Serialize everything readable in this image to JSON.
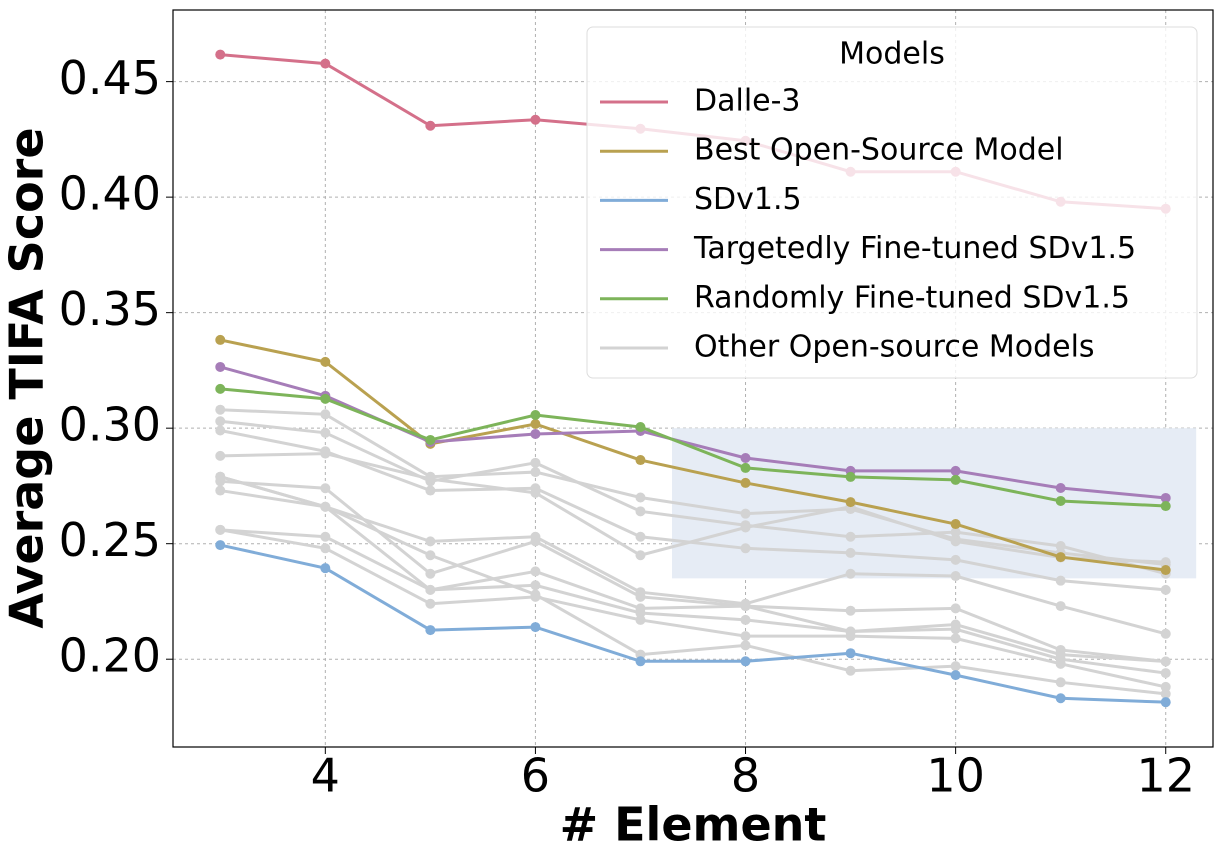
{
  "chart_data": {
    "type": "line",
    "x_label": "# Element",
    "y_label": "Average TIFA Score",
    "x": [
      3,
      4,
      5,
      6,
      7,
      8,
      9,
      10,
      11,
      12
    ],
    "xlim": [
      2.55,
      12.45
    ],
    "ylim": [
      0.162,
      0.481
    ],
    "xticks": [
      4,
      6,
      8,
      10,
      12
    ],
    "yticks": [
      {
        "value": 0.2,
        "label": "0.20"
      },
      0.25,
      {
        "value": 0.3,
        "label": "0.30"
      },
      0.35,
      {
        "value": 0.4,
        "label": "0.40"
      },
      0.45
    ],
    "grid": true,
    "legend_title": "Models",
    "legend_position": "upper right",
    "highlight_region": {
      "x": [
        7.3,
        12.29
      ],
      "y": [
        0.235,
        0.3
      ],
      "color": "#e6ecf5"
    },
    "other_models": {
      "name": "Other Open-source Models",
      "color": "#d3d3d3",
      "values": [
        [
          0.308,
          0.306,
          0.279,
          0.281,
          0.27,
          0.263,
          0.265,
          0.252,
          0.246,
          0.241
        ],
        [
          0.303,
          0.298,
          0.277,
          0.285,
          0.264,
          0.258,
          0.253,
          0.255,
          0.249,
          0.237
        ],
        [
          0.299,
          0.29,
          0.273,
          0.274,
          0.253,
          0.248,
          0.246,
          0.243,
          0.234,
          0.23
        ],
        [
          0.288,
          0.289,
          0.278,
          0.272,
          0.245,
          0.257,
          0.266,
          0.251,
          0.244,
          0.242
        ],
        [
          0.279,
          0.266,
          0.251,
          0.253,
          0.229,
          0.224,
          0.237,
          0.236,
          0.223,
          0.211
        ],
        [
          0.277,
          0.274,
          0.237,
          0.251,
          0.227,
          0.223,
          0.221,
          0.222,
          0.204,
          0.199
        ],
        [
          0.273,
          0.266,
          0.23,
          0.238,
          0.222,
          0.223,
          0.212,
          0.215,
          0.202,
          0.199
        ],
        [
          0.256,
          0.253,
          0.23,
          0.232,
          0.22,
          0.217,
          0.212,
          0.213,
          0.2,
          0.194
        ],
        [
          0.256,
          0.248,
          0.224,
          0.227,
          0.217,
          0.21,
          0.21,
          0.209,
          0.198,
          0.188
        ],
        [
          0.279,
          0.266,
          0.245,
          0.228,
          0.202,
          0.206,
          0.195,
          0.197,
          0.19,
          0.185
        ]
      ]
    },
    "series": [
      {
        "name": "Dalle-3",
        "color": "#d4708a",
        "values": [
          0.4617,
          0.4578,
          0.4309,
          0.4335,
          0.4296,
          0.4244,
          0.411,
          0.411,
          0.398,
          0.395
        ]
      },
      {
        "name": "Best Open-Source Model",
        "color": "#b9a150",
        "values": [
          0.3382,
          0.3287,
          0.2932,
          0.3018,
          0.2862,
          0.2763,
          0.268,
          0.2585,
          0.2442,
          0.2386
        ]
      },
      {
        "name": "SDv1.5",
        "color": "#80acd8",
        "values": [
          0.2494,
          0.2394,
          0.2126,
          0.2139,
          0.1991,
          0.1991,
          0.2026,
          0.1931,
          0.1831,
          0.1814
        ]
      },
      {
        "name": "Targetedly Fine-tuned SDv1.5",
        "color": "#a67db8",
        "values": [
          0.3265,
          0.314,
          0.294,
          0.2975,
          0.2988,
          0.2871,
          0.2815,
          0.2815,
          0.2741,
          0.2698
        ]
      },
      {
        "name": "Randomly Fine-tuned SDv1.5",
        "color": "#7db45a",
        "values": [
          0.317,
          0.3127,
          0.2949,
          0.3057,
          0.3005,
          0.2828,
          0.2789,
          0.2776,
          0.2685,
          0.2663
        ]
      }
    ]
  }
}
